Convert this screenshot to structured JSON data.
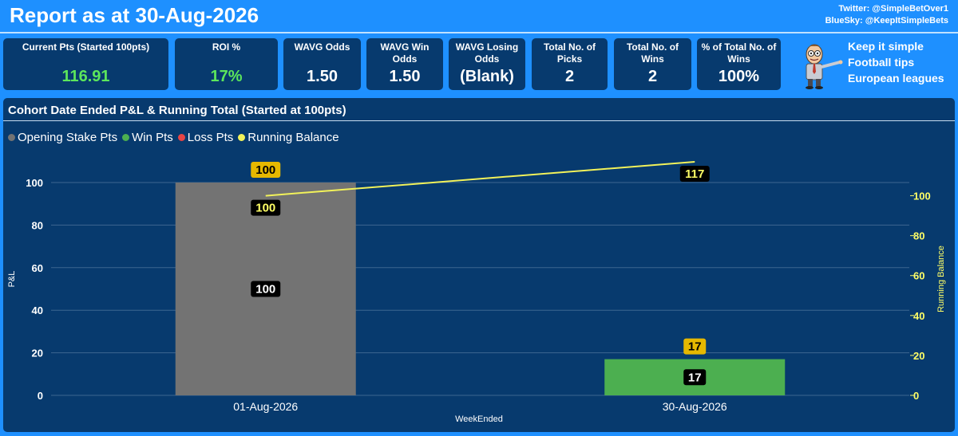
{
  "header": {
    "title": "Report as at 30-Aug-2026",
    "twitter": "Twitter: @SimpleBetOver1",
    "bluesky": "BlueSky: @KeepItSimpleBets"
  },
  "kpis": [
    {
      "label": "Current Pts (Started 100pts)",
      "value": "116.91",
      "value_color": "#5ce65c"
    },
    {
      "label": "ROI %",
      "value": "17%",
      "value_color": "#5ce65c"
    },
    {
      "label": "WAVG Odds",
      "value": "1.50",
      "value_color": "#ffffff"
    },
    {
      "label": "WAVG Win Odds",
      "value": "1.50",
      "value_color": "#ffffff"
    },
    {
      "label": "WAVG Losing Odds",
      "value": "(Blank)",
      "value_color": "#ffffff"
    },
    {
      "label": "Total No. of Picks",
      "value": "2",
      "value_color": "#ffffff"
    },
    {
      "label": "Total No. of Wins",
      "value": "2",
      "value_color": "#ffffff"
    },
    {
      "label": "% of Total No. of Wins",
      "value": "100%",
      "value_color": "#ffffff"
    }
  ],
  "promo": {
    "lines": [
      "Keep it simple",
      "Football tips",
      "European leagues"
    ],
    "icon": "cartoon-presenter-icon"
  },
  "chart_data": {
    "type": "bar",
    "title": "Cohort Date Ended P&L & Running Total (Started at 100pts)",
    "xlabel": "WeekEnded",
    "ylabel": "P&L",
    "y2label": "Running Balance",
    "categories": [
      "01-Aug-2026",
      "30-Aug-2026"
    ],
    "ylim": [
      0,
      100
    ],
    "yticks": [
      0,
      20,
      40,
      60,
      80,
      100
    ],
    "y2lim": [
      0,
      117
    ],
    "y2ticks": [
      0,
      20,
      40,
      60,
      80,
      100
    ],
    "grid": true,
    "legend_position": "top-left",
    "series": [
      {
        "name": "Opening Stake Pts",
        "kind": "bar",
        "color": "#737373",
        "values": [
          100,
          0
        ],
        "labels": [
          "100",
          ""
        ]
      },
      {
        "name": "Win Pts",
        "kind": "bar",
        "color": "#4caf50",
        "values": [
          0,
          17
        ],
        "labels": [
          "",
          "17"
        ]
      },
      {
        "name": "Loss Pts",
        "kind": "bar",
        "color": "#e84545",
        "values": [
          0,
          0
        ],
        "labels": [
          "",
          ""
        ]
      },
      {
        "name": "Running Balance",
        "kind": "line",
        "color": "#f2f25a",
        "axis": "right",
        "values": [
          100,
          117
        ],
        "labels": [
          "100",
          "117"
        ]
      }
    ],
    "totals": {
      "values": [
        100,
        17
      ],
      "labels": [
        "100",
        "17"
      ],
      "color": "#e6b800"
    }
  }
}
